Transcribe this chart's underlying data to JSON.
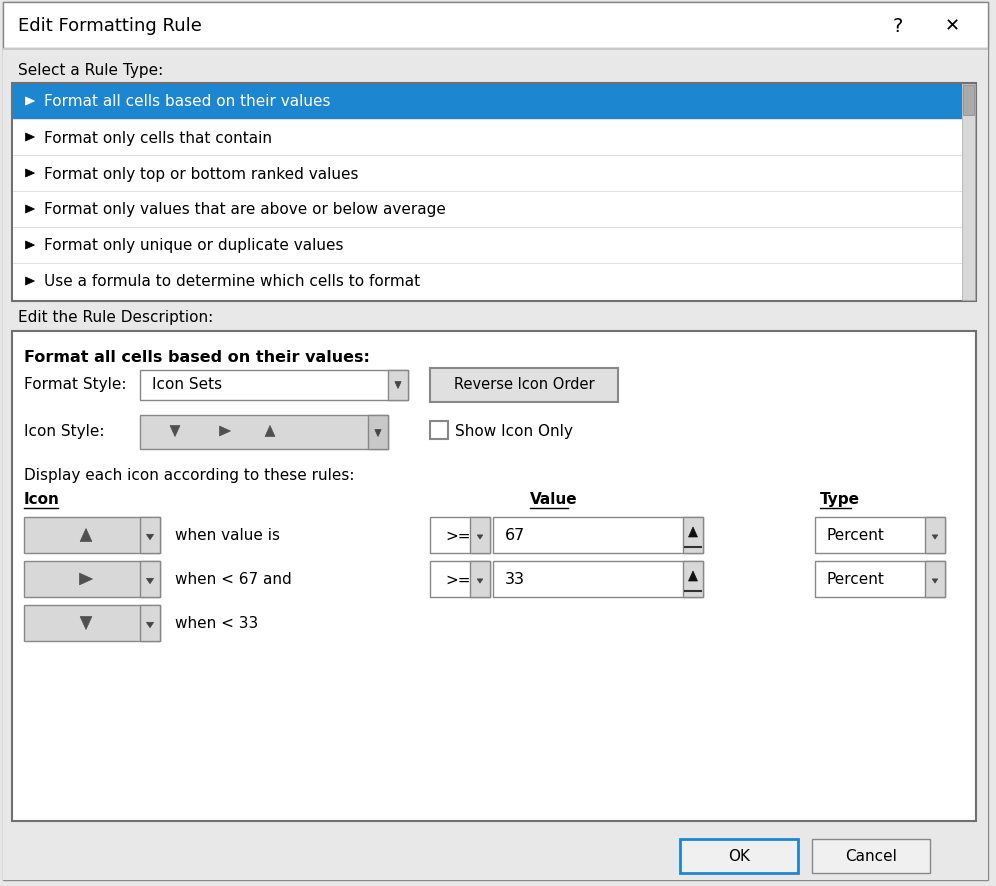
{
  "title": "Edit Formatting Rule",
  "bg_color": "#e8e8e8",
  "white": "#ffffff",
  "light_gray": "#f0f0f0",
  "mid_gray": "#d0d0d0",
  "dark_gray": "#a0a0a0",
  "blue_selected": "#1c86d1",
  "text_color": "#000000",
  "blue_text": "#1c86d1",
  "white_text": "#ffffff",
  "blue_btn_border": "#1c86d1",
  "title_bg": "#ffffff",
  "listbox_bg": "#ffffff",
  "desc_bg": "#ffffff",
  "rule_types": [
    "Format all cells based on their values",
    "Format only cells that contain",
    "Format only top or bottom ranked values",
    "Format only values that are above or below average",
    "Format only unique or duplicate values",
    "Use a formula to determine which cells to format"
  ],
  "select_label": "Select a Rule Type:",
  "edit_label": "Edit the Rule Description:",
  "format_bold": "Format all cells based on their values:",
  "format_style_label": "Format Style:",
  "format_style_value": "Icon Sets",
  "icon_style_label": "Icon Style:",
  "reverse_btn": "Reverse Icon Order",
  "show_icon_cb": "Show Icon Only",
  "display_label": "Display each icon according to these rules:",
  "icon_label": "Icon",
  "value_label": "Value",
  "type_label": "Type",
  "row1_text": "when value is",
  "row2_text": "when < 67 and",
  "row3_text": "when < 33",
  "row1_op": ">=",
  "row2_op": ">=",
  "row1_val": "67",
  "row2_val": "33",
  "row1_type": "Percent",
  "row2_type": "Percent",
  "ok_label": "OK",
  "cancel_label": "Cancel"
}
